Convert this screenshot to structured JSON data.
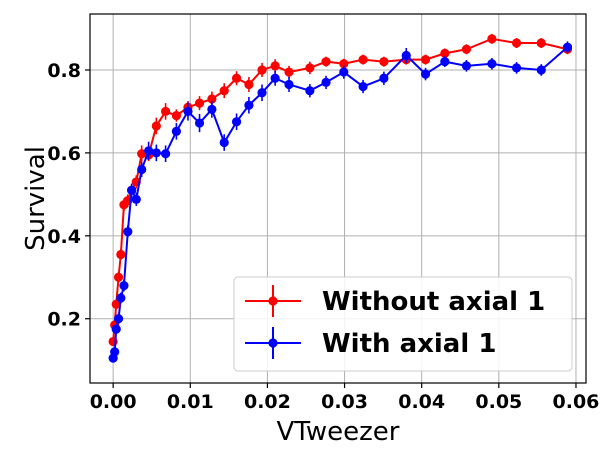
{
  "chart_data": {
    "type": "line",
    "title": "",
    "xlabel": "VTweezer",
    "ylabel": "Survival",
    "xlim": [
      -0.003,
      0.0613
    ],
    "ylim": [
      0.045,
      0.935
    ],
    "xticks": [
      0.0,
      0.01,
      0.02,
      0.03,
      0.04,
      0.05,
      0.06
    ],
    "xtick_labels": [
      "0.00",
      "0.01",
      "0.02",
      "0.03",
      "0.04",
      "0.05",
      "0.06"
    ],
    "yticks": [
      0.2,
      0.4,
      0.6,
      0.8
    ],
    "ytick_labels": [
      "0.2",
      "0.4",
      "0.6",
      "0.8"
    ],
    "grid": true,
    "legend_position": "lower-right",
    "series": [
      {
        "name": "Without axial 1",
        "color": "#ff0000",
        "x": [
          0.0,
          0.0002,
          0.0004,
          0.0007,
          0.001,
          0.0014,
          0.0019,
          0.0024,
          0.003,
          0.0037,
          0.0046,
          0.0056,
          0.0068,
          0.0082,
          0.0097,
          0.0112,
          0.0128,
          0.0144,
          0.016,
          0.0176,
          0.0193,
          0.021,
          0.0228,
          0.0255,
          0.0276,
          0.0299,
          0.0324,
          0.0351,
          0.038,
          0.0405,
          0.043,
          0.0458,
          0.0491,
          0.0523,
          0.0555,
          0.0589
        ],
        "y": [
          0.145,
          0.185,
          0.235,
          0.3,
          0.355,
          0.475,
          0.485,
          0.51,
          0.53,
          0.598,
          0.595,
          0.665,
          0.7,
          0.69,
          0.71,
          0.72,
          0.73,
          0.75,
          0.78,
          0.765,
          0.8,
          0.81,
          0.795,
          0.805,
          0.82,
          0.815,
          0.825,
          0.82,
          0.825,
          0.825,
          0.84,
          0.85,
          0.875,
          0.865,
          0.865,
          0.85
        ],
        "yerr": [
          0.01,
          0.012,
          0.012,
          0.013,
          0.013,
          0.015,
          0.015,
          0.015,
          0.016,
          0.02,
          0.015,
          0.02,
          0.02,
          0.015,
          0.015,
          0.017,
          0.018,
          0.018,
          0.017,
          0.018,
          0.017,
          0.016,
          0.015,
          0.015,
          0.012,
          0.012,
          0.012,
          0.012,
          0.012,
          0.012,
          0.012,
          0.012,
          0.012,
          0.012,
          0.012,
          0.012
        ]
      },
      {
        "name": "With axial 1",
        "color": "#0000ff",
        "x": [
          0.0,
          0.0002,
          0.0004,
          0.0007,
          0.001,
          0.0014,
          0.0019,
          0.0024,
          0.003,
          0.0037,
          0.0046,
          0.0056,
          0.0068,
          0.0082,
          0.0097,
          0.0112,
          0.0128,
          0.0144,
          0.016,
          0.0176,
          0.0193,
          0.021,
          0.0228,
          0.0255,
          0.0276,
          0.0299,
          0.0324,
          0.0351,
          0.038,
          0.0405,
          0.043,
          0.0458,
          0.0491,
          0.0523,
          0.0555,
          0.0589
        ],
        "y": [
          0.105,
          0.12,
          0.175,
          0.2,
          0.25,
          0.28,
          0.41,
          0.51,
          0.488,
          0.56,
          0.605,
          0.6,
          0.598,
          0.652,
          0.7,
          0.672,
          0.705,
          0.625,
          0.675,
          0.715,
          0.745,
          0.78,
          0.765,
          0.75,
          0.77,
          0.795,
          0.76,
          0.78,
          0.835,
          0.79,
          0.82,
          0.81,
          0.815,
          0.805,
          0.8,
          0.855
        ],
        "yerr": [
          0.01,
          0.012,
          0.012,
          0.013,
          0.013,
          0.014,
          0.015,
          0.016,
          0.016,
          0.018,
          0.022,
          0.02,
          0.02,
          0.02,
          0.022,
          0.022,
          0.02,
          0.02,
          0.02,
          0.02,
          0.02,
          0.018,
          0.018,
          0.016,
          0.016,
          0.016,
          0.016,
          0.016,
          0.018,
          0.015,
          0.013,
          0.014,
          0.014,
          0.014,
          0.014,
          0.014
        ]
      }
    ]
  }
}
